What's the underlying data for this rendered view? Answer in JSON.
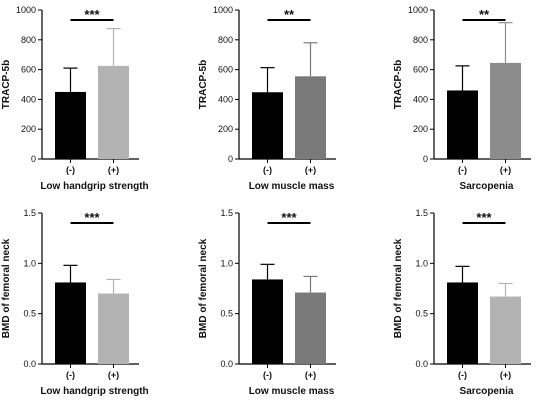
{
  "chart_data": [
    {
      "type": "bar",
      "categories": [
        "(-)",
        "(+)"
      ],
      "values": [
        450,
        625
      ],
      "errors": [
        160,
        250
      ],
      "colors": [
        "#000000",
        "#b3b3b3"
      ],
      "ylabel": "TRACP-5b",
      "xlabel": "Low handgrip strength",
      "ylim": [
        0,
        1000
      ],
      "yticks": [
        0,
        200,
        400,
        600,
        800,
        1000
      ],
      "ytick_labels": [
        "0",
        "200",
        "400",
        "600",
        "800",
        "1000"
      ],
      "significance": "***"
    },
    {
      "type": "bar",
      "categories": [
        "(-)",
        "(+)"
      ],
      "values": [
        448,
        555
      ],
      "errors": [
        165,
        225
      ],
      "colors": [
        "#000000",
        "#7a7a7a"
      ],
      "ylabel": "TRACP-5b",
      "xlabel": "Low muscle mass",
      "ylim": [
        0,
        1000
      ],
      "yticks": [
        0,
        200,
        400,
        600,
        800,
        1000
      ],
      "ytick_labels": [
        "0",
        "200",
        "400",
        "600",
        "800",
        "1000"
      ],
      "significance": "**"
    },
    {
      "type": "bar",
      "categories": [
        "(-)",
        "(+)"
      ],
      "values": [
        460,
        645
      ],
      "errors": [
        165,
        270
      ],
      "colors": [
        "#000000",
        "#8c8c8c"
      ],
      "ylabel": "TRACP-5b",
      "xlabel": "Sarcopenia",
      "ylim": [
        0,
        1000
      ],
      "yticks": [
        0,
        200,
        400,
        600,
        800,
        1000
      ],
      "ytick_labels": [
        "0",
        "200",
        "400",
        "600",
        "800",
        "1000"
      ],
      "significance": "**"
    },
    {
      "type": "bar",
      "categories": [
        "(-)",
        "(+)"
      ],
      "values": [
        0.81,
        0.7
      ],
      "errors": [
        0.17,
        0.14
      ],
      "colors": [
        "#000000",
        "#b3b3b3"
      ],
      "ylabel": "BMD of femoral neck",
      "xlabel": "Low handgrip strength",
      "ylim": [
        0,
        1.5
      ],
      "yticks": [
        0,
        0.5,
        1.0,
        1.5
      ],
      "ytick_labels": [
        "0.0",
        "0.5",
        "1.0",
        "1.5"
      ],
      "significance": "***"
    },
    {
      "type": "bar",
      "categories": [
        "(-)",
        "(+)"
      ],
      "values": [
        0.84,
        0.71
      ],
      "errors": [
        0.15,
        0.16
      ],
      "colors": [
        "#000000",
        "#7a7a7a"
      ],
      "ylabel": "BMD of femoral neck",
      "xlabel": "Low muscle mass",
      "ylim": [
        0,
        1.5
      ],
      "yticks": [
        0,
        0.5,
        1.0,
        1.5
      ],
      "ytick_labels": [
        "0.0",
        "0.5",
        "1.0",
        "1.5"
      ],
      "significance": "***"
    },
    {
      "type": "bar",
      "categories": [
        "(-)",
        "(+)"
      ],
      "values": [
        0.81,
        0.67
      ],
      "errors": [
        0.16,
        0.13
      ],
      "colors": [
        "#000000",
        "#b3b3b3"
      ],
      "ylabel": "BMD of femoral neck",
      "xlabel": "Sarcopenia",
      "ylim": [
        0,
        1.5
      ],
      "yticks": [
        0,
        0.5,
        1.0,
        1.5
      ],
      "ytick_labels": [
        "0.0",
        "0.5",
        "1.0",
        "1.5"
      ],
      "significance": "***"
    }
  ]
}
